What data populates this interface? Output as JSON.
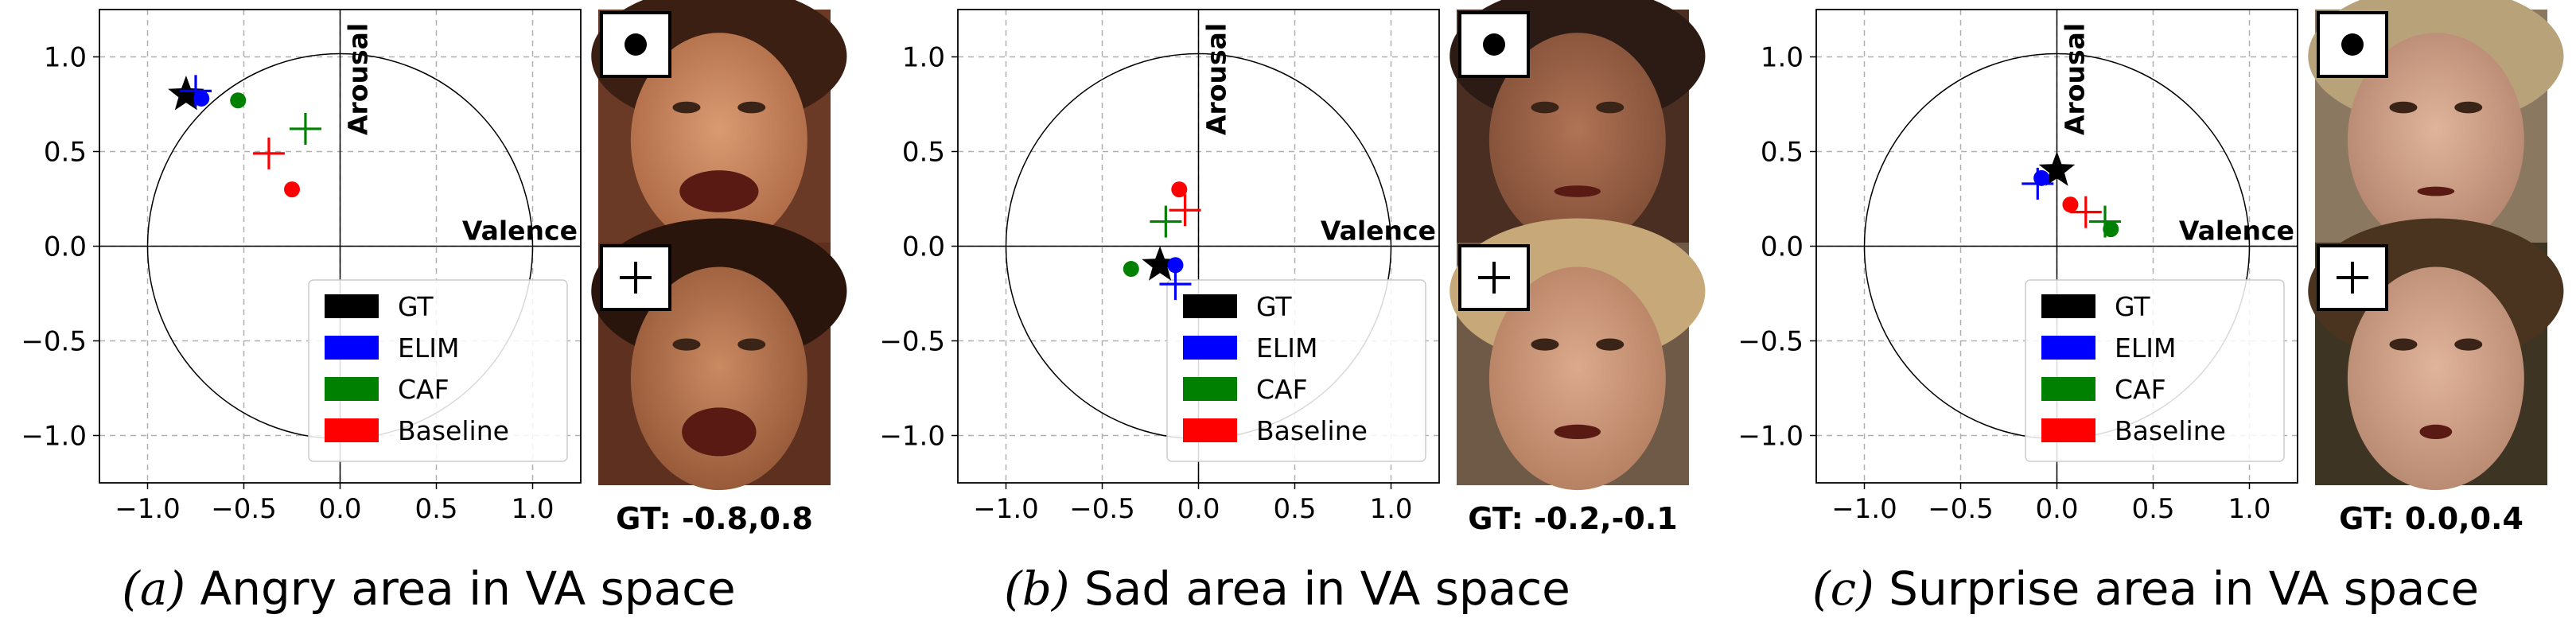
{
  "figure": {
    "legend": [
      {
        "label": "GT",
        "color": "#000000"
      },
      {
        "label": "ELIM",
        "color": "#0000ff"
      },
      {
        "label": "CAF",
        "color": "#008000"
      },
      {
        "label": "Baseline",
        "color": "#ff0000"
      }
    ],
    "photo_markers": {
      "top": "●",
      "bottom": "+"
    }
  },
  "chart_data": [
    {
      "type": "scatter",
      "xlabel": "Valence",
      "ylabel": "Arousal",
      "xlim": [
        -1.25,
        1.25
      ],
      "ylim": [
        -1.25,
        1.25
      ],
      "xticks": [
        "−1.0",
        "−0.5",
        "0.0",
        "0.5",
        "1.0"
      ],
      "yticks": [
        "1.0",
        "0.5",
        "0.0",
        "−0.5",
        "−1.0"
      ],
      "grid": true,
      "legend_position": "lower-right",
      "unit_circle": true,
      "series": [
        {
          "name": "GT",
          "marker": "star",
          "points": [
            [
              -0.8,
              0.8
            ]
          ]
        },
        {
          "name": "ELIM",
          "marker": "dot",
          "points": [
            [
              -0.72,
              0.78
            ]
          ]
        },
        {
          "name": "ELIM",
          "marker": "plus",
          "points": [
            [
              -0.75,
              0.82
            ]
          ]
        },
        {
          "name": "CAF",
          "marker": "dot",
          "points": [
            [
              -0.53,
              0.77
            ]
          ]
        },
        {
          "name": "CAF",
          "marker": "plus",
          "points": [
            [
              -0.18,
              0.62
            ]
          ]
        },
        {
          "name": "Baseline",
          "marker": "dot",
          "points": [
            [
              -0.25,
              0.3
            ]
          ]
        },
        {
          "name": "Baseline",
          "marker": "plus",
          "points": [
            [
              -0.37,
              0.49
            ]
          ]
        }
      ],
      "gt_label": "GT: -0.8,0.8",
      "caption_letter": "(a)",
      "caption_text": "Angry area in VA space"
    },
    {
      "type": "scatter",
      "xlabel": "Valence",
      "ylabel": "Arousal",
      "xlim": [
        -1.25,
        1.25
      ],
      "ylim": [
        -1.25,
        1.25
      ],
      "xticks": [
        "−1.0",
        "−0.5",
        "0.0",
        "0.5",
        "1.0"
      ],
      "yticks": [
        "1.0",
        "0.5",
        "0.0",
        "−0.5",
        "−1.0"
      ],
      "grid": true,
      "legend_position": "lower-right",
      "unit_circle": true,
      "series": [
        {
          "name": "GT",
          "marker": "star",
          "points": [
            [
              -0.2,
              -0.1
            ]
          ]
        },
        {
          "name": "ELIM",
          "marker": "dot",
          "points": [
            [
              -0.12,
              -0.1
            ]
          ]
        },
        {
          "name": "ELIM",
          "marker": "plus",
          "points": [
            [
              -0.12,
              -0.2
            ]
          ]
        },
        {
          "name": "CAF",
          "marker": "dot",
          "points": [
            [
              -0.35,
              -0.12
            ]
          ]
        },
        {
          "name": "CAF",
          "marker": "plus",
          "points": [
            [
              -0.17,
              0.13
            ]
          ]
        },
        {
          "name": "Baseline",
          "marker": "dot",
          "points": [
            [
              -0.1,
              0.3
            ]
          ]
        },
        {
          "name": "Baseline",
          "marker": "plus",
          "points": [
            [
              -0.07,
              0.19
            ]
          ]
        }
      ],
      "gt_label": "GT: -0.2,-0.1",
      "caption_letter": "(b)",
      "caption_text": "Sad area in VA space"
    },
    {
      "type": "scatter",
      "xlabel": "Valence",
      "ylabel": "Arousal",
      "xlim": [
        -1.25,
        1.25
      ],
      "ylim": [
        -1.25,
        1.25
      ],
      "xticks": [
        "−1.0",
        "−0.5",
        "0.0",
        "0.5",
        "1.0"
      ],
      "yticks": [
        "1.0",
        "0.5",
        "0.0",
        "−0.5",
        "−1.0"
      ],
      "grid": true,
      "legend_position": "lower-right",
      "unit_circle": true,
      "series": [
        {
          "name": "GT",
          "marker": "star",
          "points": [
            [
              0.0,
              0.4
            ]
          ]
        },
        {
          "name": "ELIM",
          "marker": "dot",
          "points": [
            [
              -0.08,
              0.36
            ]
          ]
        },
        {
          "name": "ELIM",
          "marker": "plus",
          "points": [
            [
              -0.1,
              0.33
            ]
          ]
        },
        {
          "name": "CAF",
          "marker": "dot",
          "points": [
            [
              0.28,
              0.09
            ]
          ]
        },
        {
          "name": "CAF",
          "marker": "plus",
          "points": [
            [
              0.25,
              0.13
            ]
          ]
        },
        {
          "name": "Baseline",
          "marker": "dot",
          "points": [
            [
              0.07,
              0.22
            ]
          ]
        },
        {
          "name": "Baseline",
          "marker": "plus",
          "points": [
            [
              0.15,
              0.18
            ]
          ]
        }
      ],
      "gt_label": "GT: 0.0,0.4",
      "caption_letter": "(c)",
      "caption_text": "Surprise area in VA space"
    }
  ]
}
